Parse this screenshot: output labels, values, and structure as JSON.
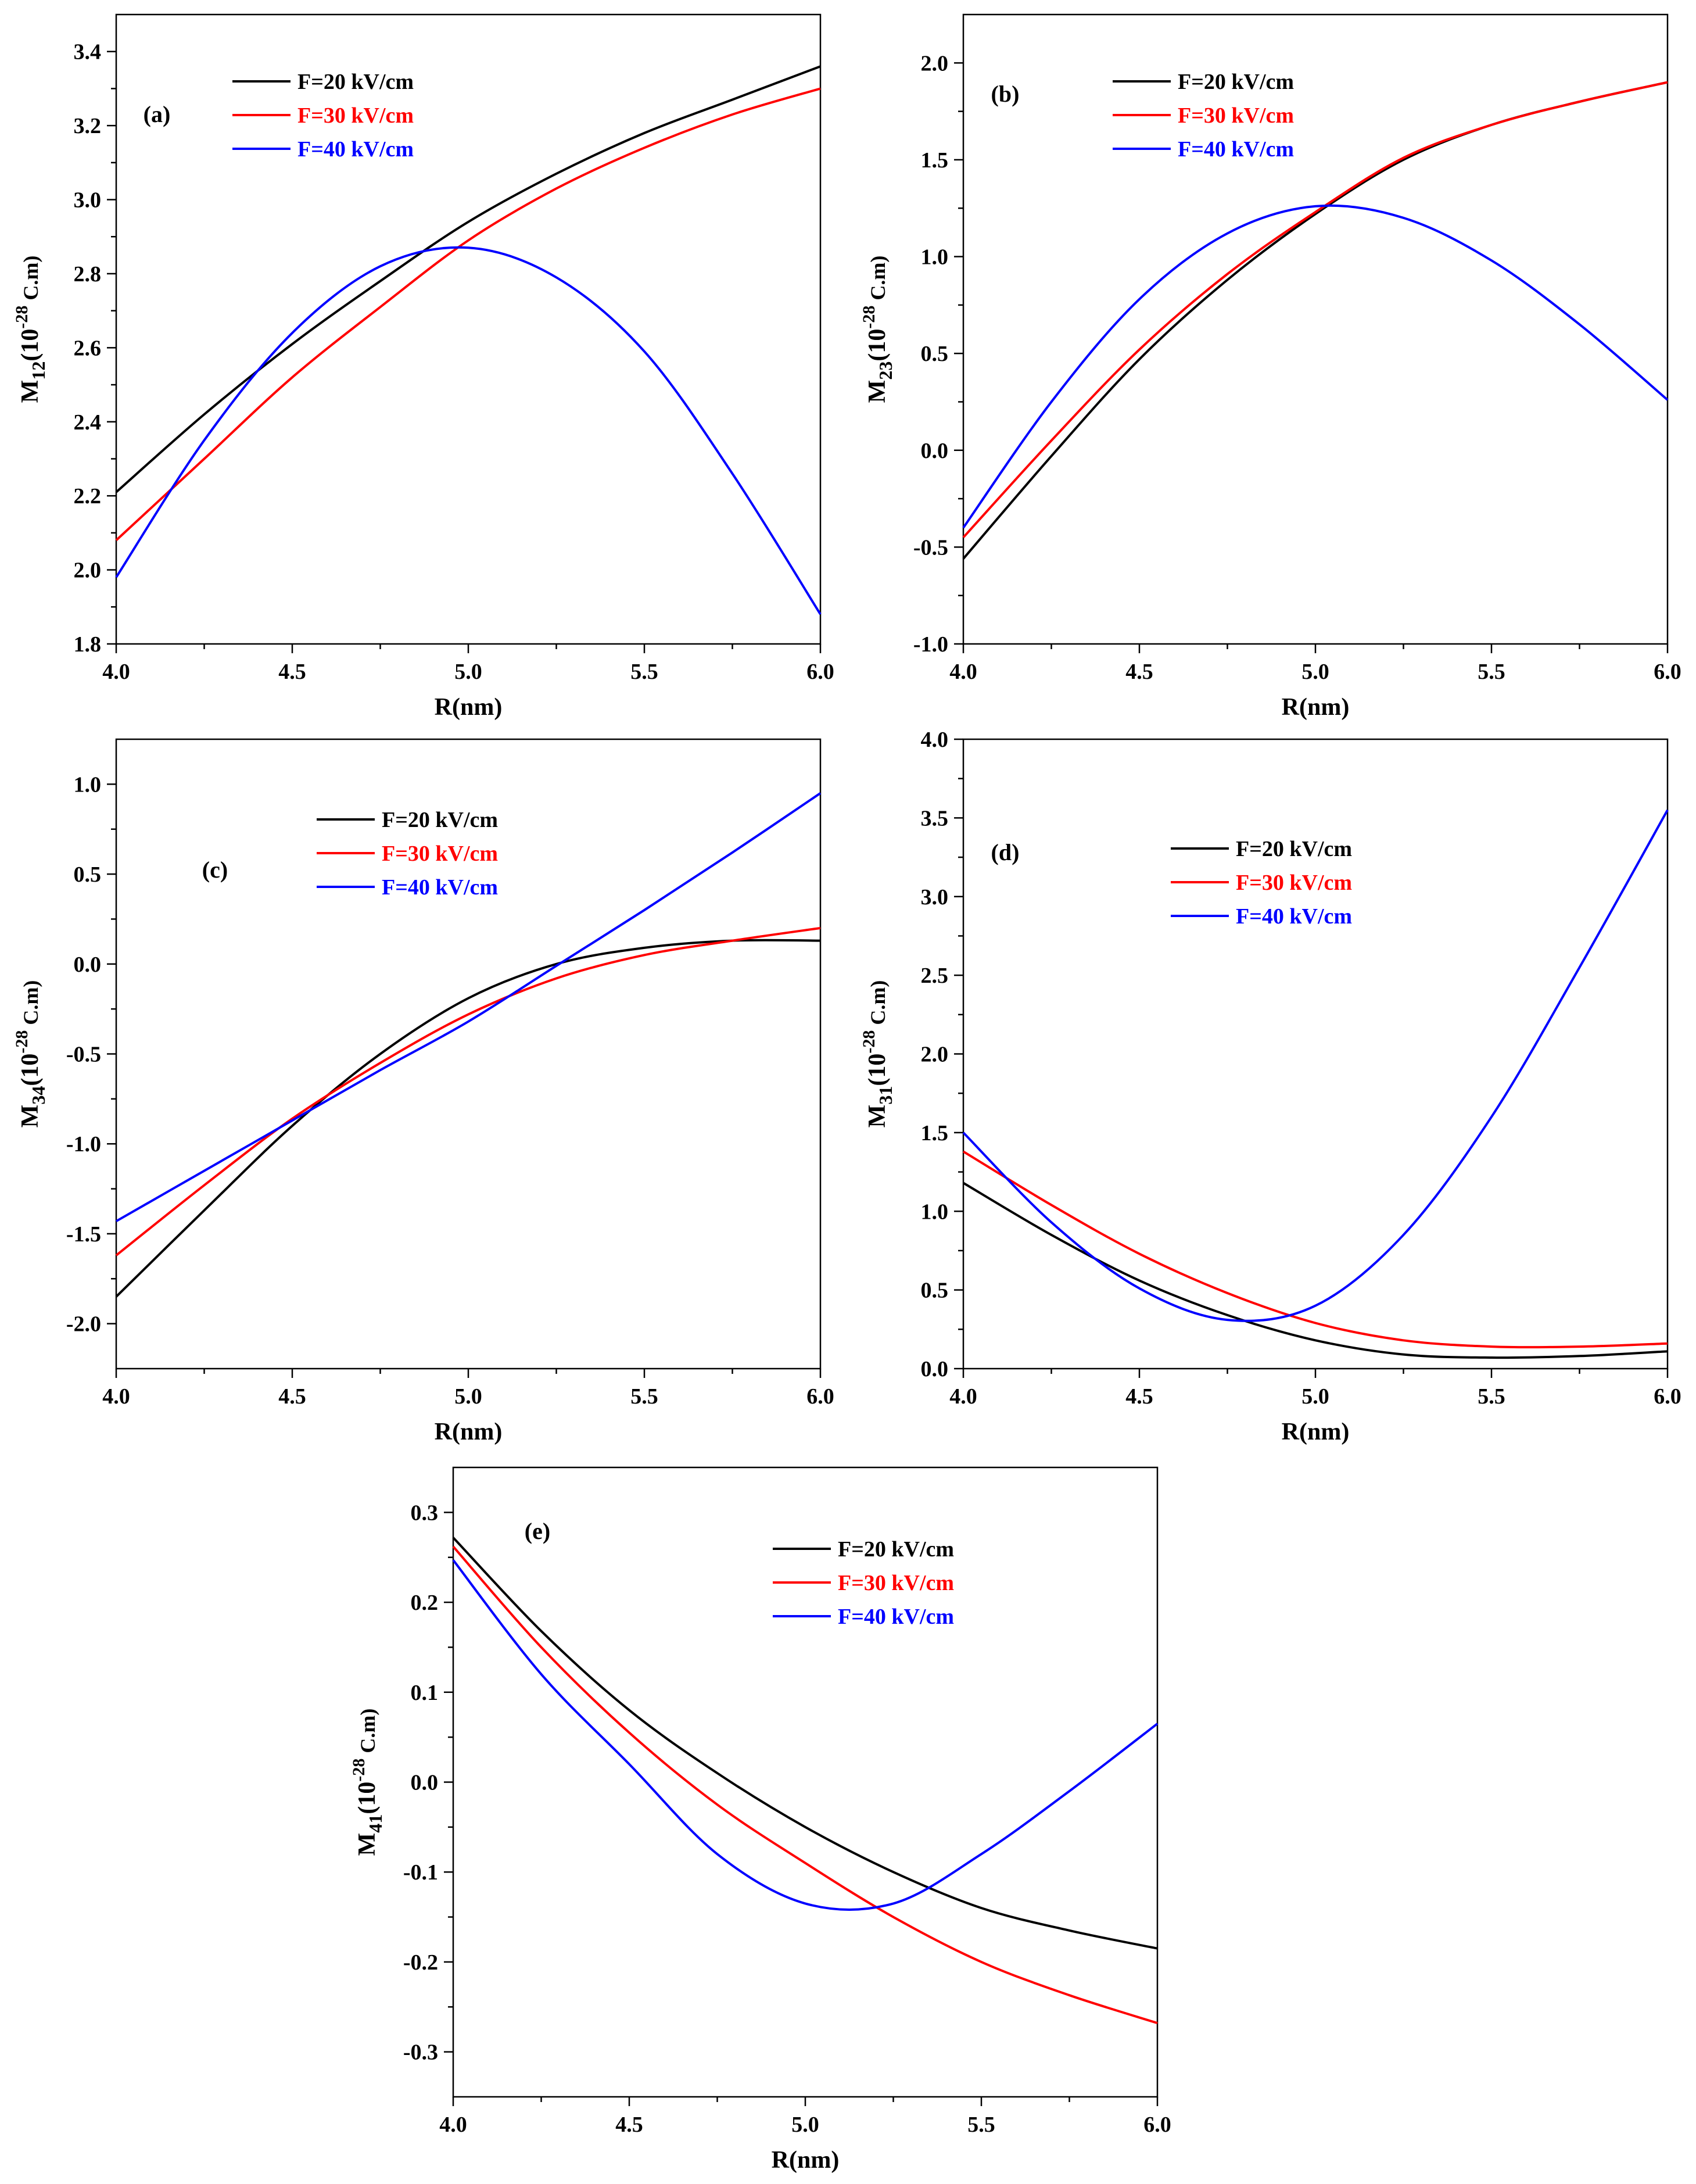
{
  "figure": {
    "series_names": [
      "F=20 kV/cm",
      "F=30 kV/cm",
      "F=40 kV/cm"
    ],
    "series_colors": [
      "#000000",
      "#ff0000",
      "#0000ff"
    ]
  },
  "chart_data": [
    {
      "panel": "(a)",
      "type": "line",
      "xlabel": "R(nm)",
      "ylabel": {
        "base": "M",
        "sub": "12",
        "paren": "(10",
        "sup": "-28",
        "unit": " C.m)"
      },
      "xlim": [
        4.0,
        6.0
      ],
      "ylim": [
        1.8,
        3.5
      ],
      "xticks": [
        "4.0",
        "4.5",
        "5.0",
        "5.5",
        "6.0"
      ],
      "yticks": [
        "1.8",
        "2.0",
        "2.2",
        "2.4",
        "2.6",
        "2.8",
        "3.0",
        "3.2",
        "3.4"
      ],
      "x": [
        4.0,
        4.25,
        4.5,
        4.75,
        5.0,
        5.25,
        5.5,
        5.75,
        6.0
      ],
      "series": [
        {
          "name": "F=20 kV/cm",
          "values": [
            2.21,
            2.42,
            2.61,
            2.78,
            2.94,
            3.07,
            3.18,
            3.27,
            3.36
          ]
        },
        {
          "name": "F=30 kV/cm",
          "values": [
            2.08,
            2.3,
            2.52,
            2.71,
            2.89,
            3.03,
            3.14,
            3.23,
            3.3
          ]
        },
        {
          "name": "F=40 kV/cm",
          "values": [
            1.98,
            2.35,
            2.64,
            2.82,
            2.87,
            2.79,
            2.59,
            2.26,
            1.88
          ]
        }
      ]
    },
    {
      "panel": "(b)",
      "type": "line",
      "xlabel": "R(nm)",
      "ylabel": {
        "base": "M",
        "sub": "23",
        "paren": "(10",
        "sup": "-28",
        "unit": " C.m)"
      },
      "xlim": [
        4.0,
        6.0
      ],
      "ylim": [
        -1.0,
        2.25
      ],
      "xticks": [
        "4.0",
        "4.5",
        "5.0",
        "5.5",
        "6.0"
      ],
      "yticks": [
        "-1.0",
        "-0.5",
        "0.0",
        "0.5",
        "1.0",
        "1.5",
        "2.0"
      ],
      "x": [
        4.0,
        4.25,
        4.5,
        4.75,
        5.0,
        5.25,
        5.5,
        5.75,
        6.0
      ],
      "series": [
        {
          "name": "F=20 kV/cm",
          "values": [
            -0.56,
            -0.03,
            0.47,
            0.88,
            1.22,
            1.5,
            1.68,
            1.8,
            1.9
          ]
        },
        {
          "name": "F=30 kV/cm",
          "values": [
            -0.45,
            0.05,
            0.52,
            0.91,
            1.23,
            1.51,
            1.68,
            1.8,
            1.9
          ]
        },
        {
          "name": "F=40 kV/cm",
          "values": [
            -0.4,
            0.25,
            0.78,
            1.12,
            1.26,
            1.2,
            0.98,
            0.65,
            0.26
          ]
        }
      ]
    },
    {
      "panel": "(c)",
      "type": "line",
      "xlabel": "R(nm)",
      "ylabel": {
        "base": "M",
        "sub": "34",
        "paren": "(10",
        "sup": "-28",
        "unit": " C.m)"
      },
      "xlim": [
        4.0,
        6.0
      ],
      "ylim": [
        -2.25,
        1.25
      ],
      "xticks": [
        "4.0",
        "4.5",
        "5.0",
        "5.5",
        "6.0"
      ],
      "yticks": [
        "-2.0",
        "-1.5",
        "-1.0",
        "-0.5",
        "0.0",
        "0.5",
        "1.0"
      ],
      "x": [
        4.0,
        4.25,
        4.5,
        4.75,
        5.0,
        5.25,
        5.5,
        5.75,
        6.0
      ],
      "series": [
        {
          "name": "F=20 kV/cm",
          "values": [
            -1.85,
            -1.37,
            -0.9,
            -0.5,
            -0.19,
            0.0,
            0.09,
            0.13,
            0.13
          ]
        },
        {
          "name": "F=30 kV/cm",
          "values": [
            -1.62,
            -1.23,
            -0.86,
            -0.55,
            -0.28,
            -0.08,
            0.05,
            0.13,
            0.2
          ]
        },
        {
          "name": "F=40 kV/cm",
          "values": [
            -1.43,
            -1.15,
            -0.87,
            -0.59,
            -0.32,
            -0.01,
            0.3,
            0.62,
            0.95
          ]
        }
      ]
    },
    {
      "panel": "(d)",
      "type": "line",
      "xlabel": "R(nm)",
      "ylabel": {
        "base": "M",
        "sub": "31",
        "paren": "(10",
        "sup": "-28",
        "unit": " C.m)"
      },
      "xlim": [
        4.0,
        6.0
      ],
      "ylim": [
        0.0,
        4.0
      ],
      "xticks": [
        "4.0",
        "4.5",
        "5.0",
        "5.5",
        "6.0"
      ],
      "yticks": [
        "0.0",
        "0.5",
        "1.0",
        "1.5",
        "2.0",
        "2.5",
        "3.0",
        "3.5",
        "4.0"
      ],
      "x": [
        4.0,
        4.25,
        4.5,
        4.75,
        5.0,
        5.25,
        5.5,
        5.75,
        6.0
      ],
      "series": [
        {
          "name": "F=20 kV/cm",
          "values": [
            1.18,
            0.85,
            0.56,
            0.34,
            0.18,
            0.09,
            0.07,
            0.08,
            0.11
          ]
        },
        {
          "name": "F=30 kV/cm",
          "values": [
            1.38,
            1.04,
            0.73,
            0.48,
            0.29,
            0.18,
            0.14,
            0.14,
            0.16
          ]
        },
        {
          "name": "F=40 kV/cm",
          "values": [
            1.5,
            0.93,
            0.51,
            0.31,
            0.4,
            0.85,
            1.6,
            2.55,
            3.55
          ]
        }
      ]
    },
    {
      "panel": "(e)",
      "type": "line",
      "xlabel": "R(nm)",
      "ylabel": {
        "base": "M",
        "sub": "41",
        "paren": "(10",
        "sup": "-28",
        "unit": " C.m)"
      },
      "xlim": [
        4.0,
        6.0
      ],
      "ylim": [
        -0.35,
        0.35
      ],
      "xticks": [
        "4.0",
        "4.5",
        "5.0",
        "5.5",
        "6.0"
      ],
      "yticks": [
        "-0.3",
        "-0.2",
        "-0.1",
        "0.0",
        "0.1",
        "0.2",
        "0.3"
      ],
      "x": [
        4.0,
        4.25,
        4.5,
        4.75,
        5.0,
        5.25,
        5.5,
        5.75,
        6.0
      ],
      "series": [
        {
          "name": "F=20 kV/cm",
          "values": [
            0.272,
            0.168,
            0.08,
            0.01,
            -0.05,
            -0.1,
            -0.14,
            -0.165,
            -0.185
          ]
        },
        {
          "name": "F=30 kV/cm",
          "values": [
            0.262,
            0.15,
            0.055,
            -0.025,
            -0.09,
            -0.15,
            -0.2,
            -0.237,
            -0.268
          ]
        },
        {
          "name": "F=40 kV/cm",
          "values": [
            0.247,
            0.12,
            0.02,
            -0.08,
            -0.135,
            -0.135,
            -0.08,
            -0.01,
            0.065
          ]
        }
      ]
    }
  ]
}
